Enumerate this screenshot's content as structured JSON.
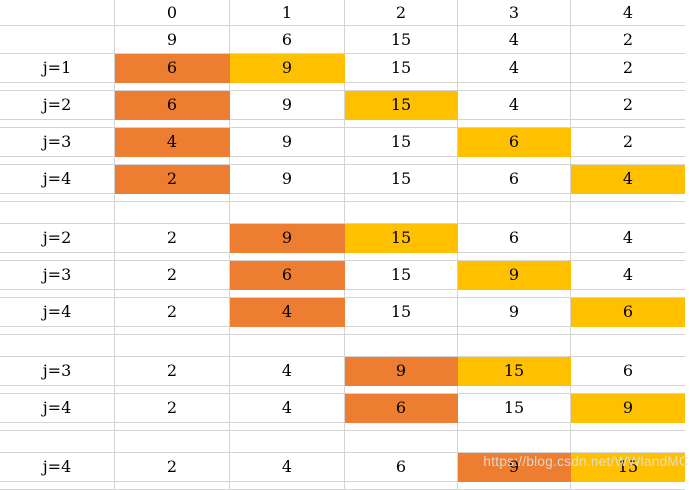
{
  "colors": {
    "orange": "#ED7D31",
    "yellow": "#FFC000",
    "gridline": "#D4D4D4",
    "text": "#000000",
    "watermark": "#DEDEDE"
  },
  "watermark": {
    "text": "https://blog.csdn.net/WWlandMC"
  },
  "table": {
    "column_headers": [
      "0",
      "1",
      "2",
      "3",
      "4"
    ],
    "rows": [
      {
        "kind": "header",
        "label": "",
        "cells": [
          "0",
          "1",
          "2",
          "3",
          "4"
        ],
        "fills": [
          null,
          null,
          null,
          null,
          null
        ]
      },
      {
        "kind": "init",
        "label": "",
        "cells": [
          "9",
          "6",
          "15",
          "4",
          "2"
        ],
        "fills": [
          null,
          null,
          null,
          null,
          null
        ]
      },
      {
        "kind": "pass",
        "label": "j=1",
        "cells": [
          "6",
          "9",
          "15",
          "4",
          "2"
        ],
        "fills": [
          "orange",
          "yellow",
          null,
          null,
          null
        ]
      },
      {
        "kind": "pass",
        "label": "j=2",
        "cells": [
          "6",
          "9",
          "15",
          "4",
          "2"
        ],
        "fills": [
          "orange",
          null,
          "yellow",
          null,
          null
        ]
      },
      {
        "kind": "pass",
        "label": "j=3",
        "cells": [
          "4",
          "9",
          "15",
          "6",
          "2"
        ],
        "fills": [
          "orange",
          null,
          null,
          "yellow",
          null
        ]
      },
      {
        "kind": "pass",
        "label": "j=4",
        "cells": [
          "2",
          "9",
          "15",
          "6",
          "4"
        ],
        "fills": [
          "orange",
          null,
          null,
          null,
          "yellow"
        ]
      },
      {
        "kind": "gap",
        "label": "",
        "cells": [
          "",
          "",
          "",
          "",
          ""
        ],
        "fills": [
          null,
          null,
          null,
          null,
          null
        ]
      },
      {
        "kind": "pass",
        "label": "j=2",
        "cells": [
          "2",
          "9",
          "15",
          "6",
          "4"
        ],
        "fills": [
          null,
          "orange",
          "yellow",
          null,
          null
        ]
      },
      {
        "kind": "pass",
        "label": "j=3",
        "cells": [
          "2",
          "6",
          "15",
          "9",
          "4"
        ],
        "fills": [
          null,
          "orange",
          null,
          "yellow",
          null
        ]
      },
      {
        "kind": "pass",
        "label": "j=4",
        "cells": [
          "2",
          "4",
          "15",
          "9",
          "6"
        ],
        "fills": [
          null,
          "orange",
          null,
          null,
          "yellow"
        ]
      },
      {
        "kind": "gap",
        "label": "",
        "cells": [
          "",
          "",
          "",
          "",
          ""
        ],
        "fills": [
          null,
          null,
          null,
          null,
          null
        ]
      },
      {
        "kind": "pass",
        "label": "j=3",
        "cells": [
          "2",
          "4",
          "9",
          "15",
          "6"
        ],
        "fills": [
          null,
          null,
          "orange",
          "yellow",
          null
        ]
      },
      {
        "kind": "pass",
        "label": "j=4",
        "cells": [
          "2",
          "4",
          "6",
          "15",
          "9"
        ],
        "fills": [
          null,
          null,
          "orange",
          null,
          "yellow"
        ]
      },
      {
        "kind": "gap",
        "label": "",
        "cells": [
          "",
          "",
          "",
          "",
          ""
        ],
        "fills": [
          null,
          null,
          null,
          null,
          null
        ]
      },
      {
        "kind": "pass",
        "label": "j=4",
        "cells": [
          "2",
          "4",
          "6",
          "9",
          "15"
        ],
        "fills": [
          null,
          null,
          null,
          "orange",
          "yellow"
        ]
      }
    ]
  }
}
